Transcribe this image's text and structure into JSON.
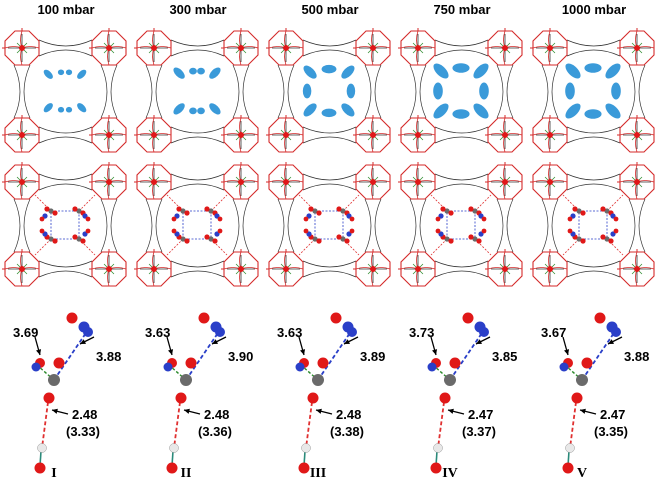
{
  "columns": [
    {
      "pressure": "100 mbar",
      "roman": "I",
      "d_left": "3.69",
      "d_right": "3.88",
      "d_bottom": "2.48",
      "d_bottom_paren": "(3.33)",
      "blob_scale": 0.45
    },
    {
      "pressure": "300 mbar",
      "roman": "II",
      "d_left": "3.63",
      "d_right": "3.90",
      "d_bottom": "2.48",
      "d_bottom_paren": "(3.36)",
      "blob_scale": 0.65
    },
    {
      "pressure": "500 mbar",
      "roman": "III",
      "d_left": "3.63",
      "d_right": "3.89",
      "d_bottom": "2.48",
      "d_bottom_paren": "(3.38)",
      "blob_scale": 0.82
    },
    {
      "pressure": "750 mbar",
      "roman": "IV",
      "d_left": "3.73",
      "d_right": "3.85",
      "d_bottom": "2.47",
      "d_bottom_paren": "(3.37)",
      "blob_scale": 1.0
    },
    {
      "pressure": "1000 mbar",
      "roman": "V",
      "d_left": "3.67",
      "d_right": "3.88",
      "d_bottom": "2.47",
      "d_bottom_paren": "(3.35)",
      "blob_scale": 1.0
    }
  ],
  "colors": {
    "framework_red": "#d42a2a",
    "framework_dark": "#333333",
    "density_blue": "#3a9ad9",
    "oxygen": "#e01818",
    "nitrogen": "#2a3fc8",
    "carbon": "#6a6a6a",
    "hydrogen": "#e8e8e8",
    "bond_blue": "#2a3fc8",
    "bond_red": "#e03030",
    "bond_green": "#2a8a2a"
  }
}
